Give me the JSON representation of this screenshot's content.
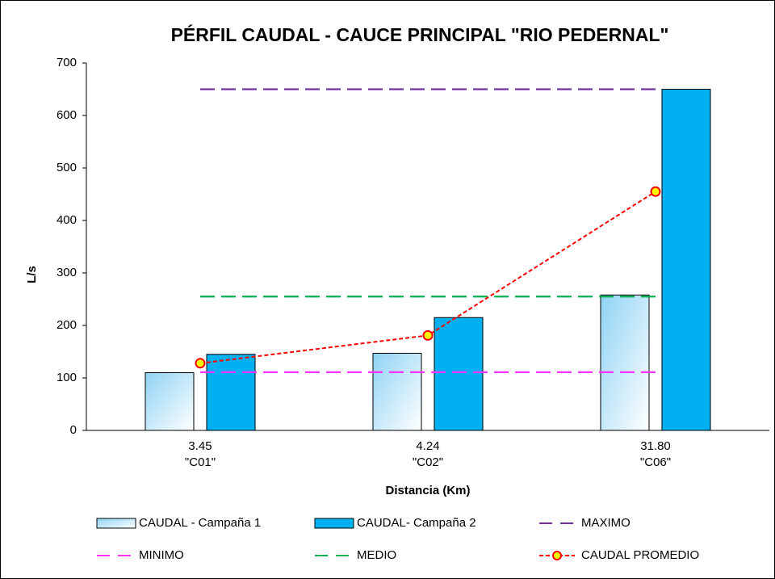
{
  "chart_data": {
    "type": "bar",
    "title": "PÉRFIL CAUDAL - CAUCE PRINCIPAL \"RIO PEDERNAL\"",
    "xlabel": "Distancia (Km)",
    "ylabel": "L/s",
    "categories": [
      "3.45",
      "4.24",
      "31.80"
    ],
    "category_codes": [
      "\"C01\"",
      "\"C02\"",
      "\"C06\""
    ],
    "ylim": [
      0,
      700
    ],
    "yticks": [
      0,
      100,
      200,
      300,
      400,
      500,
      600,
      700
    ],
    "grid": false,
    "series": [
      {
        "name": "CAUDAL  - Campaña 1",
        "type": "bar",
        "color": "#8fd3f4",
        "gradient": true,
        "values": [
          110,
          147,
          258
        ]
      },
      {
        "name": "CAUDAL- Campaña 2",
        "type": "bar",
        "color": "#00b0f0",
        "values": [
          145,
          215,
          650
        ]
      },
      {
        "name": "MAXIMO",
        "type": "line",
        "color": "#7030a0",
        "dashed": true,
        "values": [
          650,
          650,
          650
        ]
      },
      {
        "name": "MINIMO",
        "type": "line",
        "color": "#ff33ff",
        "dashed": true,
        "values": [
          111,
          111,
          111
        ]
      },
      {
        "name": "MEDIO",
        "type": "line",
        "color": "#00b050",
        "dashed": true,
        "values": [
          255,
          255,
          255
        ]
      },
      {
        "name": "CAUDAL PROMEDIO",
        "type": "line",
        "color": "#ff0000",
        "dashed": true,
        "marker": "#ffff00",
        "values": [
          128,
          181,
          455
        ]
      }
    ]
  }
}
